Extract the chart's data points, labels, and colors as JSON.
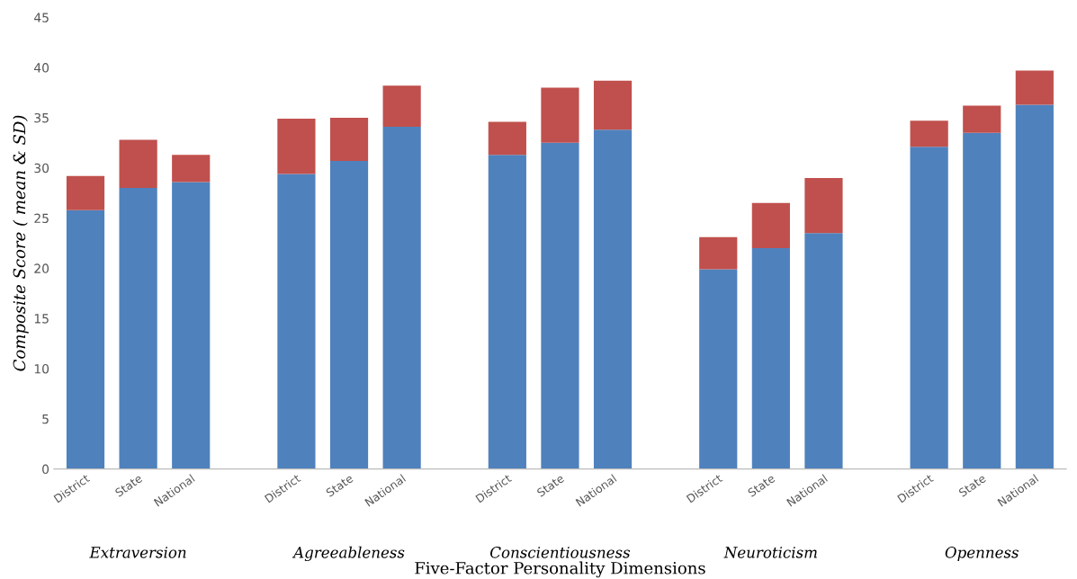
{
  "chart_data": {
    "type": "bar",
    "stacked": true,
    "xlabel": "Five-Factor Personality Dimensions",
    "ylabel": "Composite Score ( mean & SD)",
    "categories": [
      "District",
      "State",
      "National",
      null,
      "District",
      "State",
      "National",
      null,
      "District",
      "State",
      "National",
      null,
      "District",
      "State",
      "National",
      null,
      "District",
      "State",
      "National"
    ],
    "series": [
      {
        "color": "#4f81bd",
        "values": [
          25.8,
          28.0,
          28.6,
          null,
          29.4,
          30.7,
          34.1,
          null,
          31.3,
          32.5,
          33.8,
          null,
          19.9,
          22.0,
          23.5,
          null,
          32.1,
          33.5,
          36.3
        ]
      },
      {
        "color": "#c0504d",
        "values": [
          3.4,
          4.8,
          2.7,
          null,
          5.5,
          4.3,
          4.1,
          null,
          3.3,
          5.5,
          4.9,
          null,
          3.2,
          4.5,
          5.5,
          null,
          2.6,
          2.7,
          3.4
        ]
      }
    ],
    "annotations": [
      "Extraversion",
      "Agreeableness",
      "Conscientiousness",
      "Neuroticism",
      "Openness"
    ],
    "ylim": [
      0,
      45
    ],
    "yticks": [
      0,
      5,
      10,
      15,
      20,
      25,
      30,
      35,
      40,
      45
    ],
    "grid": false,
    "legend": false
  }
}
